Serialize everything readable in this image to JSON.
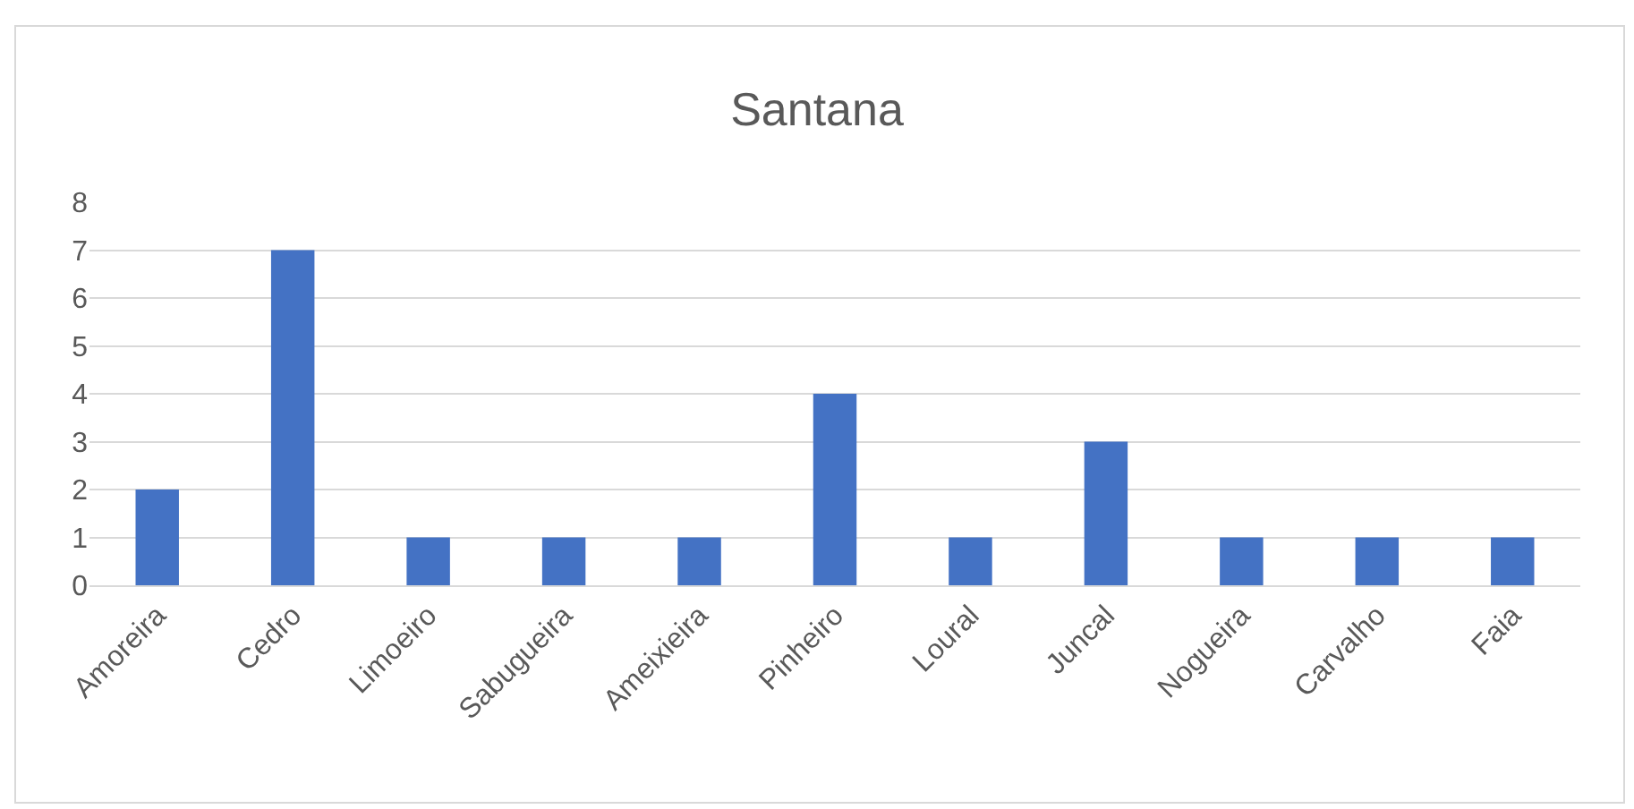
{
  "chart_data": {
    "type": "bar",
    "title": "Santana",
    "categories": [
      "Amoreira",
      "Cedro",
      "Limoeiro",
      "Sabugueira",
      "Ameixieira",
      "Pinheiro",
      "Loural",
      "Juncal",
      "Nogueira",
      "Carvalho",
      "Faia"
    ],
    "values": [
      2,
      7,
      1,
      1,
      1,
      4,
      1,
      3,
      1,
      1,
      1
    ],
    "color": "#4472c4",
    "ylim": [
      0,
      8
    ],
    "yticks": [
      0,
      1,
      2,
      3,
      4,
      5,
      6,
      7,
      8
    ],
    "grid": "y"
  }
}
